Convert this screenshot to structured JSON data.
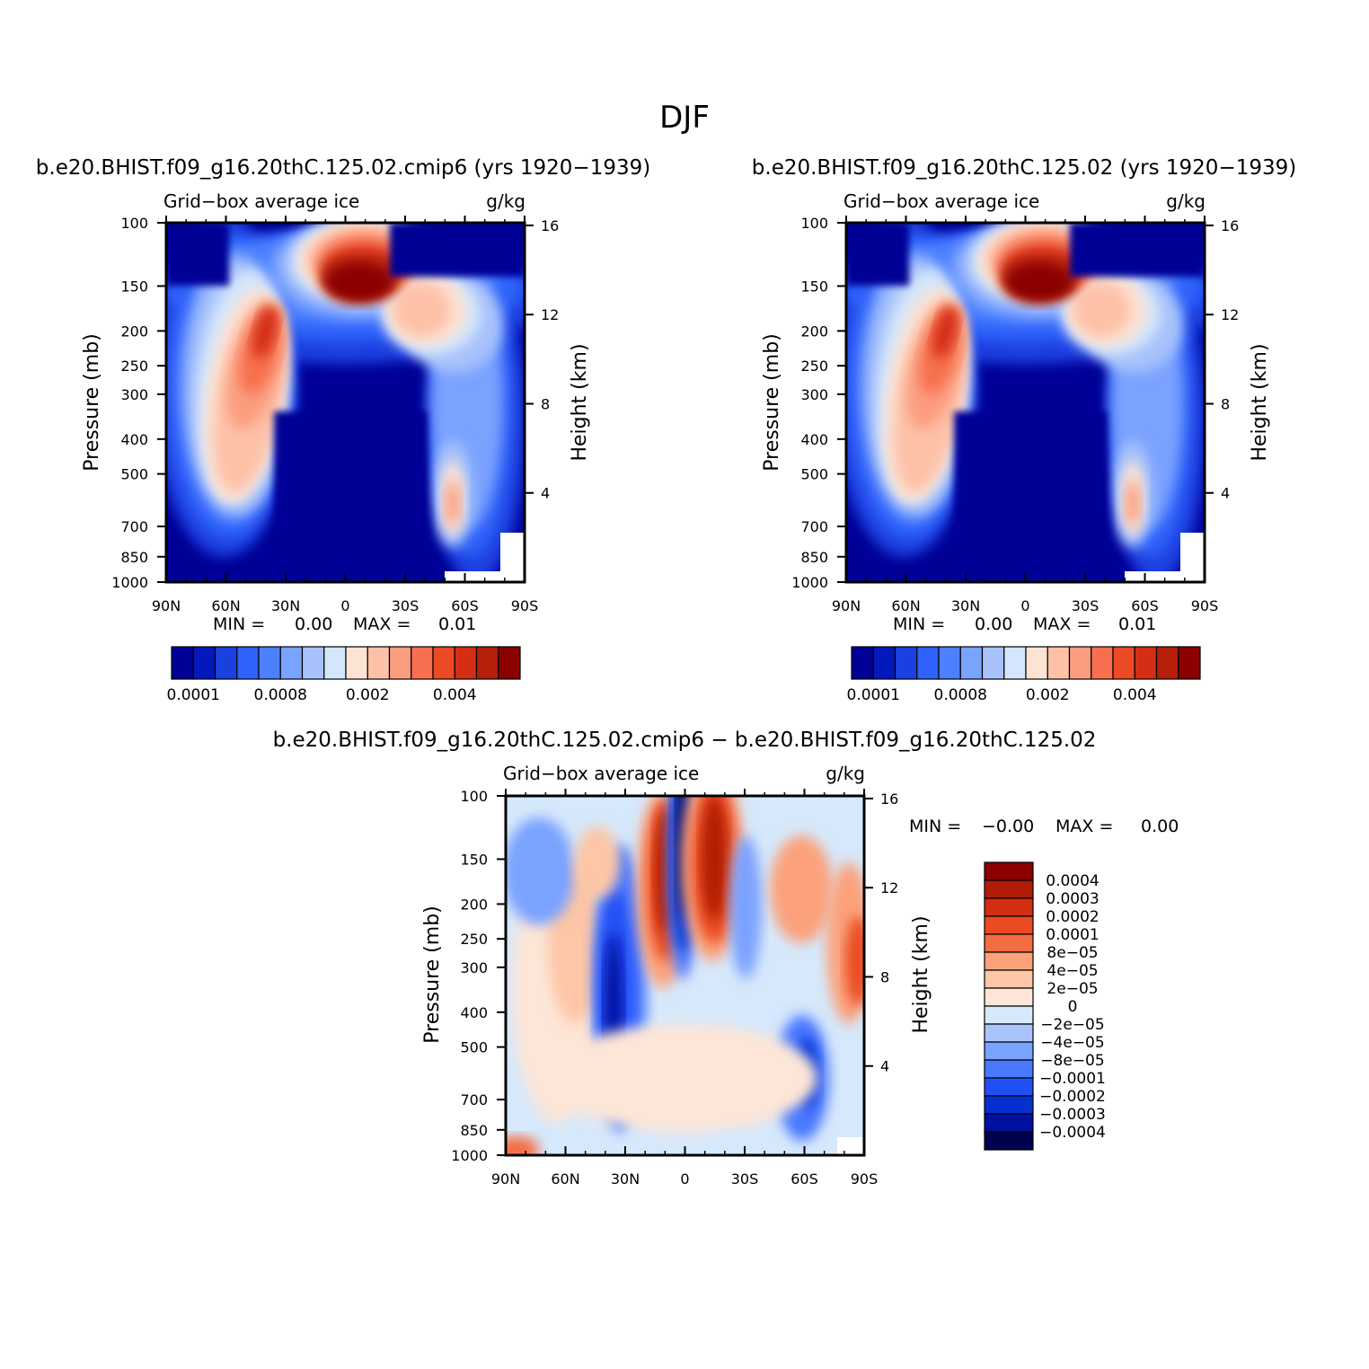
{
  "figure_title": "DJF",
  "colors": {
    "base12": [
      "#000096",
      "#0419bb",
      "#1a40e0",
      "#2f62fa",
      "#4c80ff",
      "#7aa2ff",
      "#a7c2fb",
      "#d4e6fb",
      "#fde3d4",
      "#fdc1a7",
      "#fb9d7f",
      "#f76f4e",
      "#ec4a25",
      "#d42e14",
      "#b4200a",
      "#8b0000"
    ],
    "diff17": [
      "#000050",
      "#0010a0",
      "#0530d0",
      "#2050f5",
      "#4a78ff",
      "#7aa2ff",
      "#a9c4fb",
      "#d6e8fb",
      "#fde6d7",
      "#fdc6a6",
      "#fba27c",
      "#f46c42",
      "#ea4b20",
      "#d22e10",
      "#b01c06",
      "#8b0000"
    ]
  },
  "chart_data": [
    {
      "id": "panel-top-left",
      "type": "heatmap",
      "title": "b.e20.BHIST.f09_g16.20thC.125.02.cmip6 (yrs 1920−1939)",
      "variable": "Grid−box average ice",
      "units": "g/kg",
      "xlabel": "",
      "ylabel": "Pressure (mb)",
      "ylabel_right": "Height (km)",
      "xticks": [
        "90N",
        "60N",
        "30N",
        "0",
        "30S",
        "60S",
        "90S"
      ],
      "yticks": [
        "100",
        "150",
        "200",
        "250",
        "300",
        "400",
        "500",
        "700",
        "850",
        "1000"
      ],
      "yticks_right": [
        "16",
        "12",
        "8",
        "4"
      ],
      "min_label": "MIN =",
      "min_value": "0.00",
      "max_label": "MAX =",
      "max_value": "0.01",
      "colorbar_labels": [
        "0.0001",
        "0.0008",
        "0.002",
        "0.004"
      ],
      "levels": [
        0.0001,
        0.0002,
        0.0004,
        0.0006,
        0.0008,
        0.001,
        0.0015,
        0.002,
        0.0025,
        0.003,
        0.0035,
        0.004,
        0.0045,
        0.005,
        0.0055
      ]
    },
    {
      "id": "panel-top-right",
      "type": "heatmap",
      "title": "b.e20.BHIST.f09_g16.20thC.125.02 (yrs 1920−1939)",
      "variable": "Grid−box average ice",
      "units": "g/kg",
      "xlabel": "",
      "ylabel": "Pressure (mb)",
      "ylabel_right": "Height (km)",
      "xticks": [
        "90N",
        "60N",
        "30N",
        "0",
        "30S",
        "60S",
        "90S"
      ],
      "yticks": [
        "100",
        "150",
        "200",
        "250",
        "300",
        "400",
        "500",
        "700",
        "850",
        "1000"
      ],
      "yticks_right": [
        "16",
        "12",
        "8",
        "4"
      ],
      "min_label": "MIN =",
      "min_value": "0.00",
      "max_label": "MAX =",
      "max_value": "0.01",
      "colorbar_labels": [
        "0.0001",
        "0.0008",
        "0.002",
        "0.004"
      ],
      "levels": [
        0.0001,
        0.0002,
        0.0004,
        0.0006,
        0.0008,
        0.001,
        0.0015,
        0.002,
        0.0025,
        0.003,
        0.0035,
        0.004,
        0.0045,
        0.005,
        0.0055
      ]
    },
    {
      "id": "panel-difference",
      "type": "heatmap",
      "title": "b.e20.BHIST.f09_g16.20thC.125.02.cmip6 − b.e20.BHIST.f09_g16.20thC.125.02",
      "variable": "Grid−box average ice",
      "units": "g/kg",
      "xlabel": "",
      "ylabel": "Pressure (mb)",
      "ylabel_right": "Height (km)",
      "xticks": [
        "90N",
        "60N",
        "30N",
        "0",
        "30S",
        "60S",
        "90S"
      ],
      "yticks": [
        "100",
        "150",
        "200",
        "250",
        "300",
        "400",
        "500",
        "700",
        "850",
        "1000"
      ],
      "yticks_right": [
        "16",
        "12",
        "8",
        "4"
      ],
      "min_label": "MIN =",
      "min_value": "−0.00",
      "max_label": "MAX =",
      "max_value": "0.00",
      "colorbar_labels": [
        "0.0004",
        "0.0003",
        "0.0002",
        "0.0001",
        "8e−05",
        "4e−05",
        "2e−05",
        "0",
        "−2e−05",
        "−4e−05",
        "−8e−05",
        "−0.0001",
        "−0.0002",
        "−0.0003",
        "−0.0004"
      ]
    }
  ]
}
